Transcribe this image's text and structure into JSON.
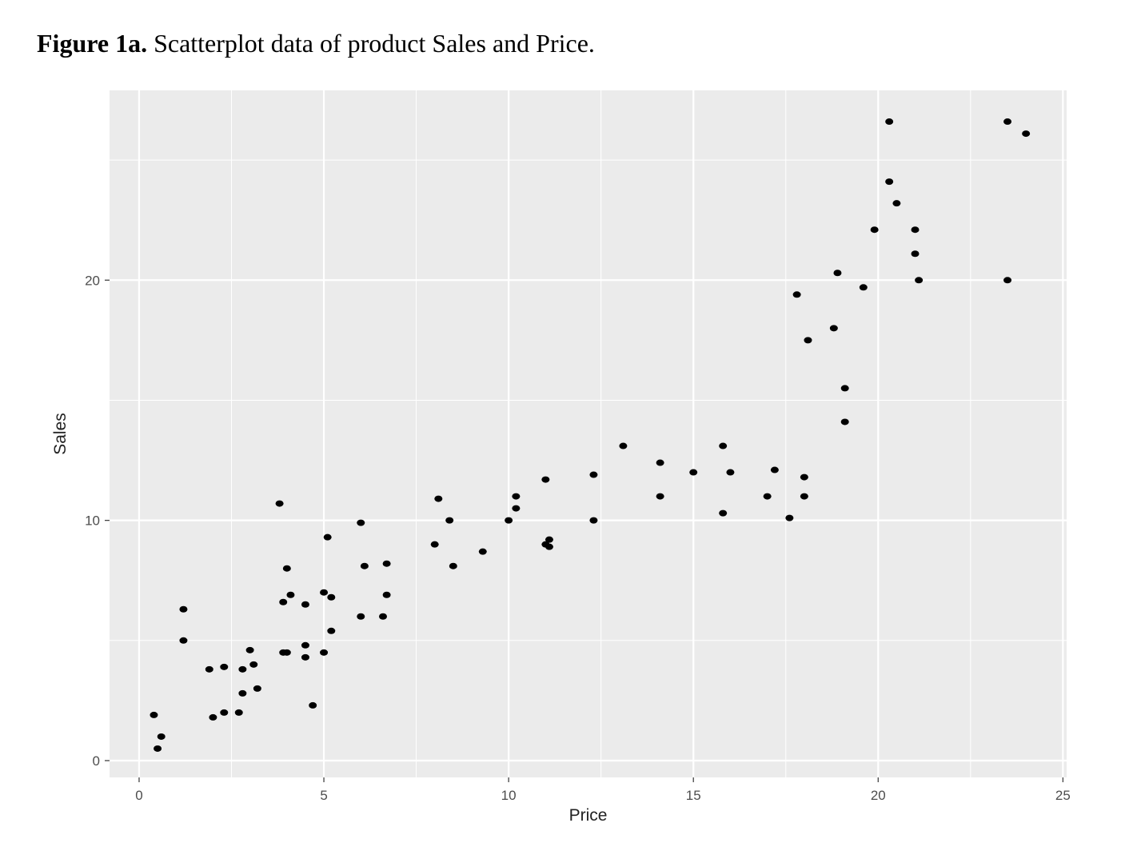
{
  "figure": {
    "label": "Figure 1a.",
    "caption": "Scatterplot data of product Sales and Price."
  },
  "chart_data": {
    "type": "scatter",
    "title": "",
    "xlabel": "Price",
    "ylabel": "Sales",
    "xlim": [
      -0.8,
      25.1
    ],
    "ylim": [
      -0.7,
      27.9
    ],
    "xticks": [
      0,
      5,
      10,
      15,
      20,
      25
    ],
    "yticks": [
      0,
      10,
      20
    ],
    "xtick_labels": [
      "0",
      "5",
      "10",
      "15",
      "20",
      "25"
    ],
    "ytick_labels": [
      "0",
      "10",
      "20"
    ],
    "grid": true,
    "background_color": "#ebebeb",
    "grid_color": "#ffffff",
    "point_color": "#000000",
    "points": [
      [
        0.4,
        1.9
      ],
      [
        0.5,
        0.5
      ],
      [
        0.6,
        1.0
      ],
      [
        1.2,
        6.3
      ],
      [
        1.2,
        5.0
      ],
      [
        1.9,
        3.8
      ],
      [
        2.0,
        1.8
      ],
      [
        2.3,
        3.9
      ],
      [
        2.3,
        2.0
      ],
      [
        2.7,
        2.0
      ],
      [
        2.8,
        3.8
      ],
      [
        2.8,
        2.8
      ],
      [
        3.0,
        4.6
      ],
      [
        3.1,
        4.0
      ],
      [
        3.2,
        3.0
      ],
      [
        3.8,
        10.7
      ],
      [
        3.9,
        6.6
      ],
      [
        3.9,
        4.5
      ],
      [
        4.0,
        8.0
      ],
      [
        4.0,
        4.5
      ],
      [
        4.1,
        6.9
      ],
      [
        4.5,
        6.5
      ],
      [
        4.5,
        4.8
      ],
      [
        4.5,
        4.3
      ],
      [
        4.7,
        2.3
      ],
      [
        5.0,
        7.0
      ],
      [
        5.0,
        4.5
      ],
      [
        5.1,
        9.3
      ],
      [
        5.2,
        6.8
      ],
      [
        5.2,
        5.4
      ],
      [
        6.0,
        9.9
      ],
      [
        6.0,
        6.0
      ],
      [
        6.1,
        8.1
      ],
      [
        6.6,
        6.0
      ],
      [
        6.7,
        8.2
      ],
      [
        6.7,
        6.9
      ],
      [
        8.0,
        9.0
      ],
      [
        8.1,
        10.9
      ],
      [
        8.4,
        10.0
      ],
      [
        8.5,
        8.1
      ],
      [
        9.3,
        8.7
      ],
      [
        10.0,
        10.0
      ],
      [
        10.2,
        11.0
      ],
      [
        10.2,
        10.5
      ],
      [
        11.0,
        11.7
      ],
      [
        11.0,
        9.0
      ],
      [
        11.1,
        9.2
      ],
      [
        11.1,
        8.9
      ],
      [
        12.3,
        11.9
      ],
      [
        12.3,
        10.0
      ],
      [
        13.1,
        13.1
      ],
      [
        14.1,
        12.4
      ],
      [
        14.1,
        11.0
      ],
      [
        15.0,
        12.0
      ],
      [
        15.8,
        13.1
      ],
      [
        15.8,
        10.3
      ],
      [
        16.0,
        12.0
      ],
      [
        17.0,
        11.0
      ],
      [
        17.2,
        12.1
      ],
      [
        17.6,
        10.1
      ],
      [
        17.8,
        19.4
      ],
      [
        18.0,
        11.8
      ],
      [
        18.0,
        11.0
      ],
      [
        18.1,
        17.5
      ],
      [
        18.8,
        18.0
      ],
      [
        18.9,
        20.3
      ],
      [
        19.1,
        15.5
      ],
      [
        19.1,
        14.1
      ],
      [
        19.6,
        19.7
      ],
      [
        19.9,
        22.1
      ],
      [
        20.3,
        26.6
      ],
      [
        20.3,
        24.1
      ],
      [
        20.5,
        23.2
      ],
      [
        21.0,
        22.1
      ],
      [
        21.0,
        21.1
      ],
      [
        21.1,
        20.0
      ],
      [
        23.5,
        26.6
      ],
      [
        23.5,
        20.0
      ],
      [
        24.0,
        26.1
      ]
    ]
  }
}
